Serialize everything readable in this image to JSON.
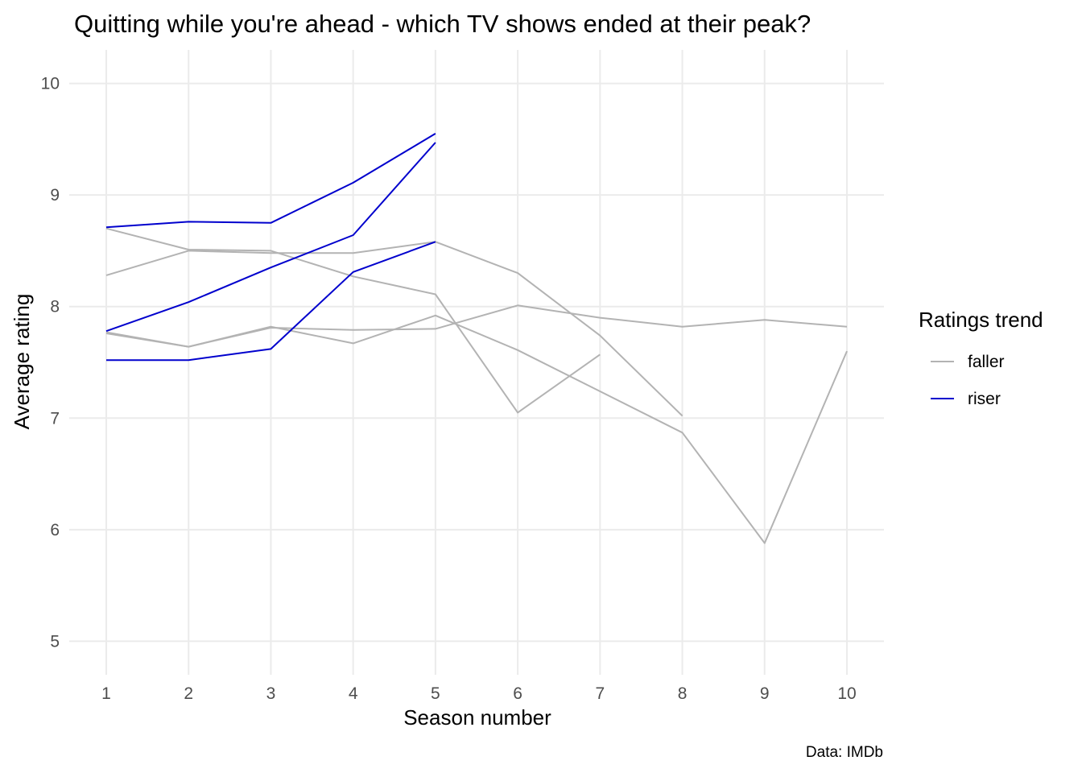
{
  "chart_data": {
    "type": "line",
    "title": "Quitting while you're ahead - which TV shows ended at their peak?",
    "xlabel": "Season number",
    "ylabel": "Average rating",
    "caption": "Data: IMDb",
    "xlim": [
      0.55,
      10.45
    ],
    "ylim": [
      4.7,
      10.3
    ],
    "x_ticks": [
      1,
      2,
      3,
      4,
      5,
      6,
      7,
      8,
      9,
      10
    ],
    "y_ticks": [
      5,
      6,
      7,
      8,
      9,
      10
    ],
    "grid": true,
    "legend": {
      "title": "Ratings trend",
      "placement": "right",
      "entries": [
        {
          "label": "faller",
          "color": "#b3b3b3"
        },
        {
          "label": "riser",
          "color": "#0000cd"
        }
      ]
    },
    "series": [
      {
        "group": "faller",
        "x": [
          1,
          2,
          3,
          4,
          5,
          6,
          7
        ],
        "y": [
          8.7,
          8.51,
          8.5,
          8.27,
          8.11,
          7.05,
          7.57
        ]
      },
      {
        "group": "faller",
        "x": [
          1,
          2,
          3,
          4,
          5,
          6,
          7,
          8
        ],
        "y": [
          8.28,
          8.5,
          8.48,
          8.48,
          8.58,
          8.3,
          7.74,
          7.02
        ]
      },
      {
        "group": "faller",
        "x": [
          1,
          2,
          3,
          4,
          5,
          6,
          7,
          8,
          9,
          10
        ],
        "y": [
          7.76,
          7.64,
          7.81,
          7.79,
          7.8,
          8.01,
          7.9,
          7.82,
          7.88,
          7.82
        ]
      },
      {
        "group": "faller",
        "x": [
          1,
          2,
          3,
          4,
          5,
          6,
          7,
          8,
          9,
          10
        ],
        "y": [
          7.77,
          7.64,
          7.82,
          7.67,
          7.92,
          7.61,
          7.24,
          6.87,
          5.88,
          7.6
        ]
      },
      {
        "group": "riser",
        "x": [
          1,
          2,
          3,
          4,
          5
        ],
        "y": [
          8.71,
          8.76,
          8.75,
          9.11,
          9.55
        ]
      },
      {
        "group": "riser",
        "x": [
          1,
          2,
          3,
          4,
          5
        ],
        "y": [
          7.78,
          8.04,
          8.35,
          8.64,
          9.47
        ]
      },
      {
        "group": "riser",
        "x": [
          1,
          2,
          3,
          4,
          5
        ],
        "y": [
          7.52,
          7.52,
          7.62,
          8.31,
          8.58
        ]
      }
    ]
  }
}
